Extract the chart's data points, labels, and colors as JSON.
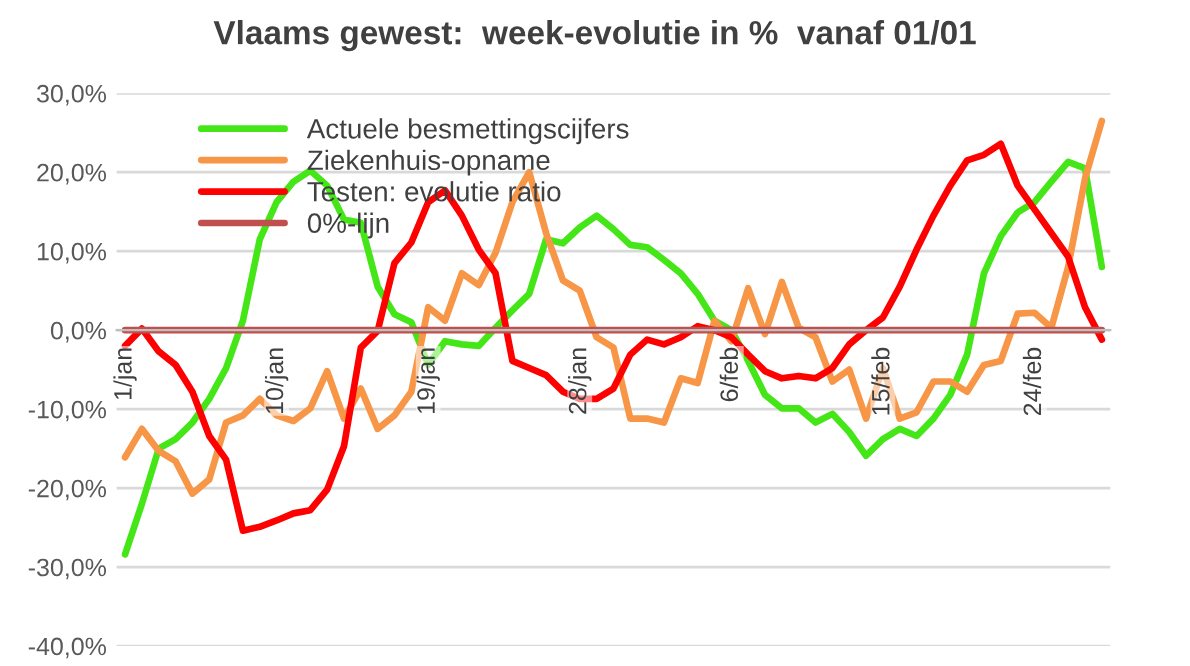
{
  "chart_data": {
    "type": "line",
    "title": "Vlaams gewest:  week-evolutie in %  vanaf 01/01",
    "categories": [
      "1/jan",
      null,
      null,
      null,
      null,
      null,
      null,
      null,
      null,
      "10/jan",
      null,
      null,
      null,
      null,
      null,
      null,
      null,
      null,
      "19/jan",
      null,
      null,
      null,
      null,
      null,
      null,
      null,
      null,
      "28/jan",
      null,
      null,
      null,
      null,
      null,
      null,
      null,
      null,
      "6/feb",
      null,
      null,
      null,
      null,
      null,
      null,
      null,
      null,
      "15/feb",
      null,
      null,
      null,
      null,
      null,
      null,
      null,
      null,
      "24/feb",
      null,
      null,
      null,
      null
    ],
    "series": [
      {
        "name": "Actuele besmettingscijfers",
        "color": "#44e617",
        "values": [
          -28.4,
          -22,
          -15,
          -13.8,
          -11.7,
          -8.7,
          -4.8,
          1.2,
          11.5,
          16.2,
          18.8,
          20.2,
          18.3,
          14,
          13.6,
          5.5,
          2,
          1,
          -4.4,
          -1.4,
          -1.8,
          -2,
          0.3,
          2.5,
          4.6,
          11.5,
          11,
          13,
          14.5,
          12.8,
          10.8,
          10.5,
          8.9,
          7.2,
          4.6,
          1.2,
          0,
          -3.9,
          -8.2,
          -9.9,
          -9.9,
          -11.7,
          -10.6,
          -12.9,
          -15.9,
          -13.8,
          -12.5,
          -13.4,
          -11.2,
          -8.2,
          -3.1,
          7.2,
          11.9,
          14.9,
          16.2,
          18.8,
          21.3,
          20.5,
          8
        ]
      },
      {
        "name": "Ziekenhuis-opname",
        "color": "#f79646",
        "values": [
          -16.1,
          -12.5,
          -15.3,
          -16.6,
          -20.7,
          -18.9,
          -11.7,
          -10.8,
          -8.7,
          -10.8,
          -11.5,
          -9.9,
          -5.2,
          -11.2,
          -7.4,
          -12.5,
          -10.8,
          -7.8,
          2.9,
          1.2,
          7.2,
          5.7,
          9.8,
          16.2,
          20,
          12.3,
          6.3,
          5,
          -0.9,
          -2.2,
          -11.2,
          -11.2,
          -11.7,
          -6.1,
          -6.7,
          1.2,
          -1.4,
          5.3,
          -0.5,
          6.1,
          0.3,
          -0.9,
          -6.5,
          -5,
          -11.2,
          -4.8,
          -11.2,
          -10.4,
          -6.5,
          -6.5,
          -7.8,
          -4.4,
          -3.9,
          2.1,
          2.2,
          0.3,
          8,
          19.2,
          26.5
        ]
      },
      {
        "name": "Testen: evolutie ratio",
        "color": "#ff0000",
        "values": [
          -2,
          0.2,
          -2.7,
          -4.4,
          -7.8,
          -13.4,
          -16.4,
          -25.4,
          -24.9,
          -24.1,
          -23.2,
          -22.8,
          -20.2,
          -14.7,
          -2.2,
          -0.1,
          8.5,
          11.1,
          16.2,
          17.7,
          14.5,
          10.2,
          7.2,
          -3.9,
          -4.8,
          -5.7,
          -7.8,
          -8.7,
          -8.7,
          -7.4,
          -3.1,
          -1.2,
          -1.8,
          -0.9,
          0.5,
          0,
          -0.9,
          -3.1,
          -5.2,
          -6.1,
          -5.8,
          -6.1,
          -4.8,
          -1.8,
          0,
          1.6,
          5.5,
          10.2,
          14.5,
          18.3,
          21.5,
          22.2,
          23.6,
          18.3,
          15.3,
          12.3,
          9.3,
          2.9,
          -1.2
        ]
      },
      {
        "name": "0%-lijn",
        "color": "#c0504d",
        "values": [
          0,
          0,
          0,
          0,
          0,
          0,
          0,
          0,
          0,
          0,
          0,
          0,
          0,
          0,
          0,
          0,
          0,
          0,
          0,
          0,
          0,
          0,
          0,
          0,
          0,
          0,
          0,
          0,
          0,
          0,
          0,
          0,
          0,
          0,
          0,
          0,
          0,
          0,
          0,
          0,
          0,
          0,
          0,
          0,
          0,
          0,
          0,
          0,
          0,
          0,
          0,
          0,
          0,
          0,
          0,
          0,
          0,
          0,
          0
        ]
      }
    ],
    "ylim": [
      -40,
      30
    ],
    "yticks": [
      {
        "value": -40,
        "label": "-40,0%"
      },
      {
        "value": -30,
        "label": "-30,0%"
      },
      {
        "value": -20,
        "label": "-20,0%"
      },
      {
        "value": -10,
        "label": "-10,0%"
      },
      {
        "value": 0,
        "label": "0,0%"
      },
      {
        "value": 10,
        "label": "10,0%"
      },
      {
        "value": 20,
        "label": "20,0%"
      },
      {
        "value": 30,
        "label": "30,0%"
      }
    ],
    "grid": "y",
    "legend": "top left",
    "marker": "none",
    "line_style": "solid"
  }
}
